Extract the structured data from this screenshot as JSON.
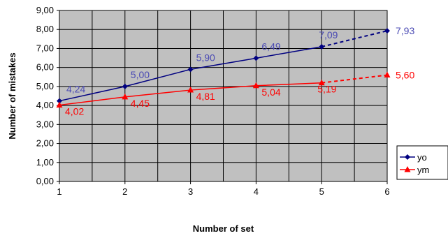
{
  "chart_data": {
    "type": "line",
    "title": "",
    "xlabel": "Number of set",
    "ylabel": "Number of mistakes",
    "x": [
      1,
      2,
      3,
      4,
      5,
      6
    ],
    "xlim": [
      1,
      6
    ],
    "ylim": [
      0,
      9
    ],
    "y_tick_labels": [
      "0,00",
      "1,00",
      "2,00",
      "3,00",
      "4,00",
      "5,00",
      "6,00",
      "7,00",
      "8,00",
      "9,00"
    ],
    "x_tick_labels": [
      "1",
      "2",
      "3",
      "4",
      "5",
      "6"
    ],
    "grid": true,
    "plot_background": "#c0c0c0",
    "legend_position": "right",
    "series": [
      {
        "name": "yo",
        "color": "#000080",
        "label_color": "#4b4bb4",
        "marker": "diamond",
        "values": [
          4.24,
          5.0,
          5.9,
          6.49,
          7.09,
          7.93
        ],
        "data_labels": [
          "4,24",
          "5,00",
          "5,90",
          "6,49",
          "7,09",
          "7,93"
        ],
        "solid_until_index": 4
      },
      {
        "name": "ym",
        "color": "#ff0000",
        "label_color": "#ff0000",
        "marker": "triangle",
        "values": [
          4.02,
          4.45,
          4.81,
          5.04,
          5.19,
          5.6
        ],
        "data_labels": [
          "4,02",
          "4,45",
          "4,81",
          "5,04",
          "5,19",
          "5,60"
        ],
        "solid_until_index": 4
      }
    ]
  }
}
